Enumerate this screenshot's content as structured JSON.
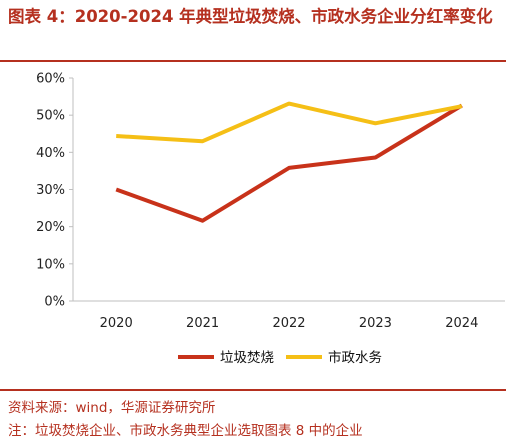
{
  "header": {
    "title": "图表 4：2020-2024 年典型垃圾焚烧、市政水务企业分红率变化"
  },
  "footer": {
    "source": "资料来源：wind，华源证券研究所",
    "note": "注：垃圾焚烧企业、市政水务典型企业选取图表 8 中的企业"
  },
  "colors": {
    "accent": "#b5301f",
    "series_incineration": "#c8321a",
    "series_water": "#f5bf16",
    "axis": "#bfbfbf"
  },
  "chart_data": {
    "type": "line",
    "title": "图表 4：2020-2024 年典型垃圾焚烧、市政水务企业分红率变化",
    "xlabel": "",
    "ylabel": "",
    "x": [
      "2020",
      "2021",
      "2022",
      "2023",
      "2024"
    ],
    "ylim": [
      0,
      60
    ],
    "yticks": [
      0,
      10,
      20,
      30,
      40,
      50,
      60
    ],
    "ytick_labels": [
      "0%",
      "10%",
      "20%",
      "30%",
      "40%",
      "50%",
      "60%"
    ],
    "grid": false,
    "legend_position": "bottom",
    "series": [
      {
        "name": "垃圾焚烧",
        "color": "#c8321a",
        "values": [
          30.0,
          21.6,
          35.8,
          38.6,
          52.6
        ]
      },
      {
        "name": "市政水务",
        "color": "#f5bf16",
        "values": [
          44.4,
          43.0,
          53.1,
          47.8,
          52.4
        ]
      }
    ]
  }
}
